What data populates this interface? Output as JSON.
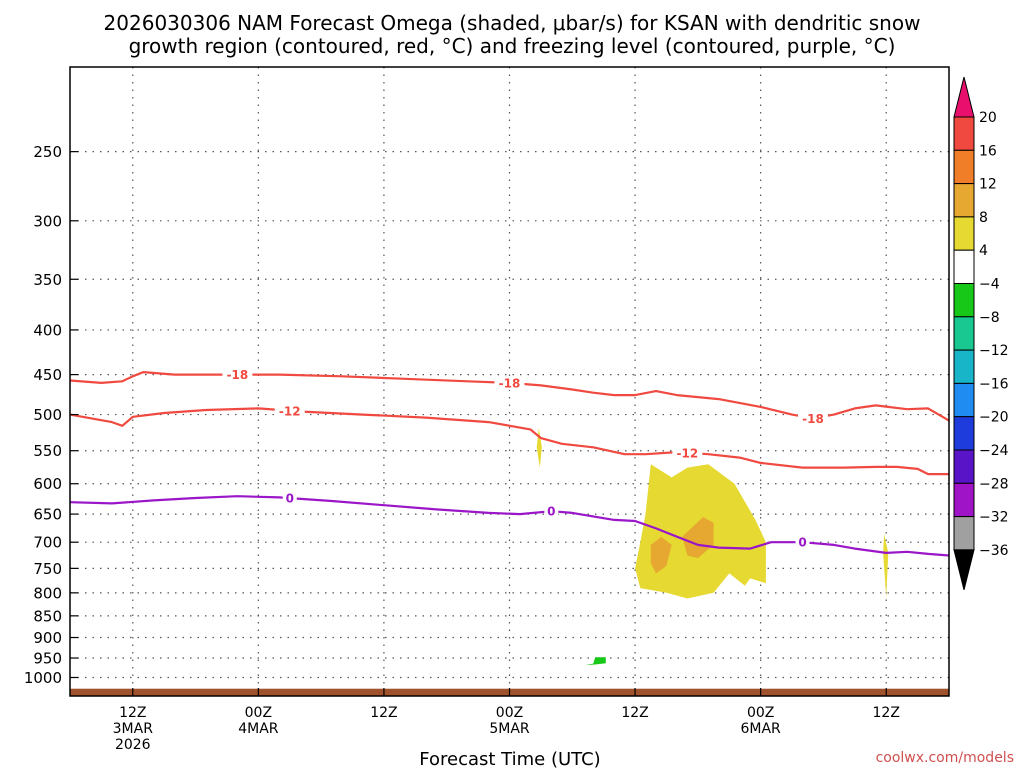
{
  "title_line1": "2026030306 NAM Forecast Omega (shaded, μbar/s) for KSAN with dendritic snow",
  "title_line2": "growth region (contoured, red, °C) and freezing level (contoured, purple, °C)",
  "credit": "coolwx.com/models",
  "colors": {
    "red_contour": "#f04a40",
    "purple_contour": "#9a16c8",
    "ground": "#a0522d",
    "credit": "#d05050"
  },
  "chart_data": {
    "type": "heatmap",
    "xlabel": "Forecast Time (UTC)",
    "ylabel": "",
    "x_units": "hours from 2026030306",
    "xlim": [
      0,
      84
    ],
    "ylim": [
      1050,
      200
    ],
    "y_scale": "log pressure (hPa)",
    "grid": true,
    "y_ticks": [
      250,
      300,
      350,
      400,
      450,
      500,
      550,
      600,
      650,
      700,
      750,
      800,
      850,
      900,
      950,
      1000
    ],
    "x_ticks": [
      {
        "x": 6,
        "l1": "12Z",
        "l2": "3MAR",
        "l3": "2026"
      },
      {
        "x": 18,
        "l1": "00Z",
        "l2": "4MAR",
        "l3": ""
      },
      {
        "x": 30,
        "l1": "12Z",
        "l2": "",
        "l3": ""
      },
      {
        "x": 42,
        "l1": "00Z",
        "l2": "5MAR",
        "l3": ""
      },
      {
        "x": 54,
        "l1": "12Z",
        "l2": "",
        "l3": ""
      },
      {
        "x": 66,
        "l1": "00Z",
        "l2": "6MAR",
        "l3": ""
      },
      {
        "x": 78,
        "l1": "12Z",
        "l2": "",
        "l3": ""
      }
    ],
    "colorbar": {
      "ticks": [
        "20",
        "16",
        "12",
        "8",
        "4",
        "−4",
        "−8",
        "−12",
        "−16",
        "−20",
        "−24",
        "−28",
        "−32",
        "−36"
      ],
      "colors": [
        "#e8106c",
        "#f04a40",
        "#f07e28",
        "#e6a830",
        "#e6da32",
        "#ffffff",
        "#18c818",
        "#18c890",
        "#18b4c8",
        "#1e8cf0",
        "#1e3cdc",
        "#5a14c8",
        "#a014c8",
        "#a0a0a0",
        "#000000"
      ]
    },
    "contours": [
      {
        "name": "-18",
        "color": "#f04a40",
        "points": [
          [
            0,
            457
          ],
          [
            3,
            460
          ],
          [
            5,
            458
          ],
          [
            6,
            452
          ],
          [
            7,
            447
          ],
          [
            10,
            450
          ],
          [
            14,
            450
          ],
          [
            20,
            450
          ],
          [
            26,
            452
          ],
          [
            32,
            455
          ],
          [
            38,
            458
          ],
          [
            42,
            460
          ],
          [
            45,
            463
          ],
          [
            48,
            468
          ],
          [
            50,
            472
          ],
          [
            52,
            475
          ],
          [
            54,
            475
          ],
          [
            56,
            470
          ],
          [
            58,
            475
          ],
          [
            62,
            480
          ],
          [
            66,
            490
          ],
          [
            69,
            500
          ],
          [
            71,
            505
          ],
          [
            73,
            500
          ],
          [
            75,
            492
          ],
          [
            77,
            488
          ],
          [
            80,
            493
          ],
          [
            82,
            492
          ],
          [
            84,
            508
          ]
        ],
        "labels": [
          {
            "x": 16,
            "text": "-18"
          },
          {
            "x": 42,
            "text": "-18"
          },
          {
            "x": 71,
            "text": "-18"
          }
        ]
      },
      {
        "name": "-12",
        "color": "#f04a40",
        "points": [
          [
            0,
            500
          ],
          [
            2,
            505
          ],
          [
            4,
            510
          ],
          [
            5,
            515
          ],
          [
            6,
            503
          ],
          [
            9,
            498
          ],
          [
            13,
            494
          ],
          [
            18,
            492
          ],
          [
            22,
            496
          ],
          [
            28,
            500
          ],
          [
            34,
            504
          ],
          [
            40,
            510
          ],
          [
            44,
            520
          ],
          [
            45,
            532
          ],
          [
            47,
            540
          ],
          [
            50,
            545
          ],
          [
            53,
            555
          ],
          [
            55,
            555
          ],
          [
            58,
            552
          ],
          [
            61,
            555
          ],
          [
            64,
            560
          ],
          [
            66,
            568
          ],
          [
            70,
            575
          ],
          [
            74,
            575
          ],
          [
            77,
            574
          ],
          [
            79,
            574
          ],
          [
            81,
            577
          ],
          [
            82,
            585
          ],
          [
            84,
            585
          ]
        ],
        "labels": [
          {
            "x": 21,
            "text": "-12"
          },
          {
            "x": 59,
            "text": "-12"
          }
        ]
      },
      {
        "name": "0",
        "color": "#9a16c8",
        "points": [
          [
            0,
            630
          ],
          [
            4,
            632
          ],
          [
            8,
            627
          ],
          [
            12,
            623
          ],
          [
            16,
            620
          ],
          [
            20,
            622
          ],
          [
            25,
            628
          ],
          [
            30,
            635
          ],
          [
            35,
            642
          ],
          [
            40,
            648
          ],
          [
            43,
            650
          ],
          [
            46,
            645
          ],
          [
            48,
            648
          ],
          [
            52,
            660
          ],
          [
            54,
            662
          ],
          [
            56,
            675
          ],
          [
            58,
            690
          ],
          [
            60,
            705
          ],
          [
            62,
            710
          ],
          [
            65,
            712
          ],
          [
            67,
            700
          ],
          [
            70,
            700
          ],
          [
            73,
            705
          ],
          [
            75,
            712
          ],
          [
            78,
            720
          ],
          [
            80,
            718
          ],
          [
            82,
            722
          ],
          [
            84,
            725
          ]
        ],
        "labels": [
          {
            "x": 21,
            "text": "0"
          },
          {
            "x": 46,
            "text": "0"
          },
          {
            "x": 70,
            "text": "0"
          }
        ]
      }
    ],
    "shaded_regions": [
      {
        "value": "4 to 8",
        "color": "#e6da32",
        "points": [
          [
            55.5,
            570
          ],
          [
            57.5,
            590
          ],
          [
            59,
            575
          ],
          [
            61,
            570
          ],
          [
            63.5,
            600
          ],
          [
            65.5,
            660
          ],
          [
            66.5,
            700
          ],
          [
            66.5,
            780
          ],
          [
            65,
            770
          ],
          [
            64.5,
            785
          ],
          [
            63,
            760
          ],
          [
            61.5,
            800
          ],
          [
            59,
            812
          ],
          [
            57,
            800
          ],
          [
            54.5,
            790
          ],
          [
            54,
            750
          ],
          [
            54.5,
            700
          ],
          [
            55,
            650
          ]
        ]
      },
      {
        "value": "8 to 12",
        "color": "#e6a830",
        "points": [
          [
            56.5,
            690
          ],
          [
            57.5,
            705
          ],
          [
            57,
            745
          ],
          [
            56,
            760
          ],
          [
            55.5,
            740
          ],
          [
            55.5,
            705
          ]
        ]
      },
      {
        "value": "8 to 12",
        "color": "#e6a830",
        "points": [
          [
            60.5,
            655
          ],
          [
            61.5,
            665
          ],
          [
            61.5,
            705
          ],
          [
            60,
            730
          ],
          [
            59,
            725
          ],
          [
            58.5,
            690
          ]
        ]
      },
      {
        "value": "4 to 8",
        "color": "#e6da32",
        "points": [
          [
            44.8,
            518
          ],
          [
            45.1,
            545
          ],
          [
            44.9,
            575
          ],
          [
            44.6,
            545
          ]
        ]
      },
      {
        "value": "4 to 8",
        "color": "#e6da32",
        "points": [
          [
            77.8,
            685
          ],
          [
            78.2,
            720
          ],
          [
            78,
            810
          ],
          [
            77.7,
            720
          ]
        ]
      },
      {
        "value": "-8 to -4",
        "color": "#18c818",
        "points": [
          [
            50.2,
            948
          ],
          [
            51.2,
            948
          ],
          [
            51.2,
            963
          ],
          [
            50.3,
            966
          ],
          [
            49.2,
            968
          ],
          [
            50,
            964
          ]
        ]
      }
    ]
  }
}
